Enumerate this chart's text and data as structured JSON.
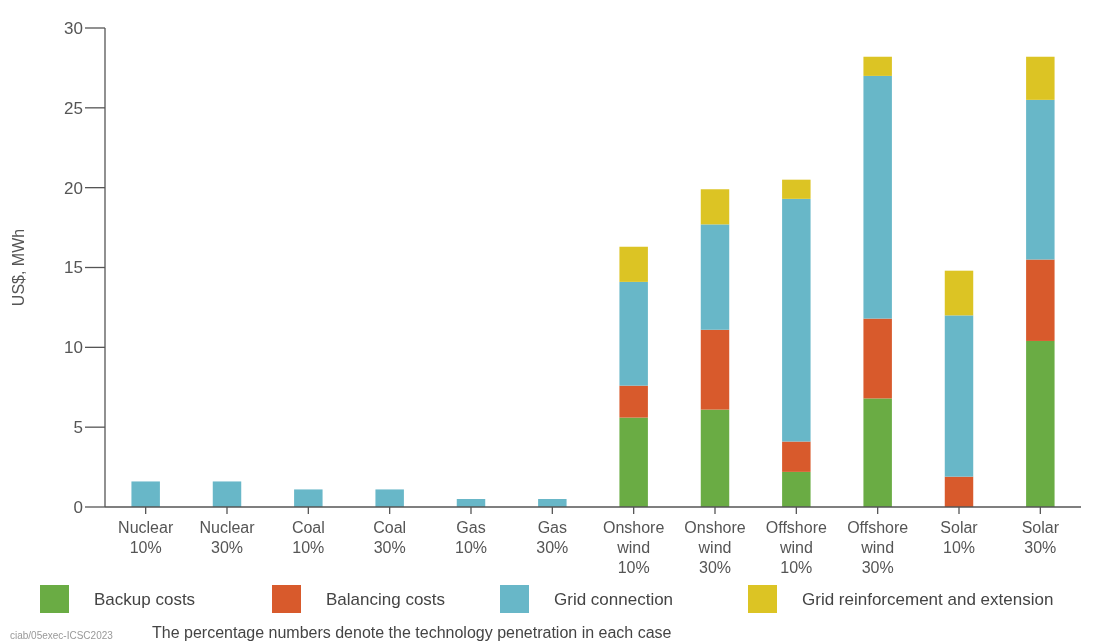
{
  "chart_data": {
    "type": "bar",
    "stacked": true,
    "ylabel": "US$, MWh",
    "categories": [
      "Nuclear 10%",
      "Nuclear 30%",
      "Coal 10%",
      "Coal 30%",
      "Gas 10%",
      "Gas 30%",
      "Onshore wind 10%",
      "Onshore wind 30%",
      "Offshore wind 10%",
      "Offshore wind 30%",
      "Solar 10%",
      "Solar 30%"
    ],
    "series": [
      {
        "name": "Backup costs",
        "color": "#6aac44",
        "values": [
          0,
          0,
          0,
          0,
          0,
          0,
          5.6,
          6.1,
          2.2,
          6.8,
          0,
          10.4
        ]
      },
      {
        "name": "Balancing costs",
        "color": "#d85a2c",
        "values": [
          0,
          0,
          0,
          0,
          0,
          0,
          2.0,
          5.0,
          1.9,
          5.0,
          1.9,
          5.1
        ]
      },
      {
        "name": "Grid connection",
        "color": "#68b7c8",
        "values": [
          1.6,
          1.6,
          1.1,
          1.1,
          0.5,
          0.5,
          6.5,
          6.6,
          15.2,
          15.2,
          10.1,
          10.0
        ]
      },
      {
        "name": "Grid reinforcement and extension",
        "color": "#dcc424",
        "values": [
          0,
          0,
          0,
          0,
          0,
          0,
          2.2,
          2.2,
          1.2,
          1.2,
          2.8,
          2.7
        ]
      }
    ],
    "ylim": [
      0,
      30
    ],
    "yticks": [
      0,
      5,
      10,
      15,
      20,
      25,
      30
    ],
    "grid": false,
    "legend": "bottom",
    "annotations": [
      "ciab/05exec-ICSC2023",
      "The percentage numbers denote the technology penetration in each case"
    ]
  }
}
